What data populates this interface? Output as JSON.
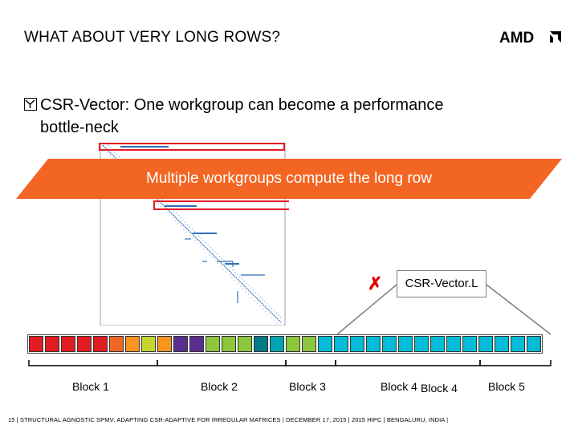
{
  "slide": {
    "title": "WHAT ABOUT VERY LONG ROWS?",
    "logo_text": "AMD",
    "bullet_line1": "CSR-Vector: One workgroup can become a performance",
    "bullet_line2": "bottle-neck",
    "banner_text": "Multiple workgroups compute the long row",
    "x_mark": "✗",
    "vector_l_label": "CSR-Vector.L",
    "blocks": [
      "Block 1",
      "Block 2",
      "Block 3",
      "Block 4",
      "Block 4",
      "Block 5"
    ],
    "footer": "15  |  STRUCTURAL AGNOSTIC SPMV: ADAPTING CSR-ADAPTIVE FOR IRREGULAR MATRICES  |  DECEMBER 17, 2015  |  2015 HIPC  |  BENGALURU, INDIA  |"
  },
  "colors": {
    "banner": "#f26522",
    "highlight_red": "#e31b23",
    "cells": [
      "#e31b23",
      "#e31b23",
      "#e31b23",
      "#e31b23",
      "#e31b23",
      "#f26522",
      "#f7941d",
      "#c6d42e",
      "#f7941d",
      "#5b2d8e",
      "#5b2d8e",
      "#8dc63f",
      "#8dc63f",
      "#8dc63f",
      "#007a87",
      "#00a3b4",
      "#8dc63f",
      "#8dc63f",
      "#00bcd4",
      "#00bcd4",
      "#00bcd4",
      "#00bcd4",
      "#00bcd4",
      "#00bcd4",
      "#00bcd4",
      "#00bcd4",
      "#00bcd4",
      "#00bcd4",
      "#00bcd4",
      "#00bcd4",
      "#00bcd4",
      "#00bcd4"
    ]
  }
}
